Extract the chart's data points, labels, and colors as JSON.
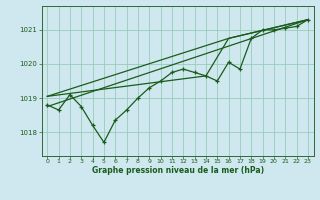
{
  "title": "Graphe pression niveau de la mer (hPa)",
  "background_color": "#cfe8f0",
  "grid_color": "#99ccbb",
  "line_color": "#1a5c1a",
  "x_ticks": [
    0,
    1,
    2,
    3,
    4,
    5,
    6,
    7,
    8,
    9,
    10,
    11,
    12,
    13,
    14,
    15,
    16,
    17,
    18,
    19,
    20,
    21,
    22,
    23
  ],
  "y_ticks": [
    1018,
    1019,
    1020,
    1021
  ],
  "ylim": [
    1017.3,
    1021.7
  ],
  "xlim": [
    -0.5,
    23.5
  ],
  "series1": {
    "x": [
      0,
      1,
      2,
      3,
      4,
      5,
      6,
      7,
      8,
      9,
      10,
      11,
      12,
      13,
      14,
      15,
      16,
      17,
      18,
      19,
      20,
      21,
      22,
      23
    ],
    "y": [
      1018.8,
      1018.65,
      1019.1,
      1018.75,
      1018.2,
      1017.7,
      1018.35,
      1018.65,
      1019.0,
      1019.3,
      1019.5,
      1019.75,
      1019.85,
      1019.75,
      1019.65,
      1019.5,
      1020.05,
      1019.85,
      1020.75,
      1021.0,
      1021.0,
      1021.05,
      1021.1,
      1021.3
    ]
  },
  "series2": {
    "x": [
      0,
      23
    ],
    "y": [
      1018.75,
      1021.3
    ]
  },
  "series3": {
    "x": [
      0,
      16,
      23
    ],
    "y": [
      1019.05,
      1020.75,
      1021.3
    ]
  },
  "series4": {
    "x": [
      0,
      14,
      16,
      23
    ],
    "y": [
      1019.05,
      1019.65,
      1020.75,
      1021.3
    ]
  }
}
